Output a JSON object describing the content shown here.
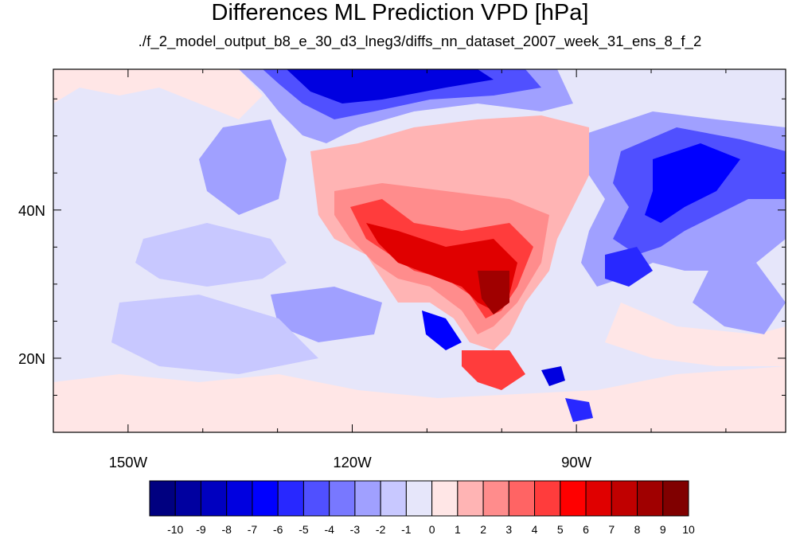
{
  "title": "Differences ML Prediction VPD [hPa]",
  "subtitle": "./f_2_model_output_b8_e_30_d3_lneg3/diffs_nn_dataset_2007_week_31_ens_8_f_2",
  "map": {
    "projection": "lat-lon",
    "lon_range": [
      -160,
      -62
    ],
    "lat_range": [
      10,
      59
    ],
    "lon_ticks": [
      {
        "value": -150,
        "label": "150W"
      },
      {
        "value": -120,
        "label": "120W"
      },
      {
        "value": -90,
        "label": "90W"
      }
    ],
    "lat_ticks": [
      {
        "value": 40,
        "label": "40N"
      },
      {
        "value": 20,
        "label": "20N"
      }
    ],
    "minor_lon_step": 10,
    "minor_lat_step": 5,
    "background_color": "#e6e6fa"
  },
  "colorbar": {
    "labels": [
      "-10",
      "-9",
      "-8",
      "-7",
      "-6",
      "-5",
      "-4",
      "-3",
      "-2",
      "-1",
      "0",
      "1",
      "2",
      "3",
      "4",
      "5",
      "6",
      "7",
      "8",
      "9",
      "10"
    ],
    "colors": [
      "#000080",
      "#0000a0",
      "#0000c0",
      "#0000e0",
      "#0000ff",
      "#2828ff",
      "#5050ff",
      "#7878ff",
      "#a0a0ff",
      "#c8c8ff",
      "#e6e6fa",
      "#ffe6e6",
      "#ffb4b4",
      "#ff8c8c",
      "#ff6464",
      "#ff3c3c",
      "#ff0000",
      "#e00000",
      "#c00000",
      "#a00000",
      "#800000"
    ]
  }
}
